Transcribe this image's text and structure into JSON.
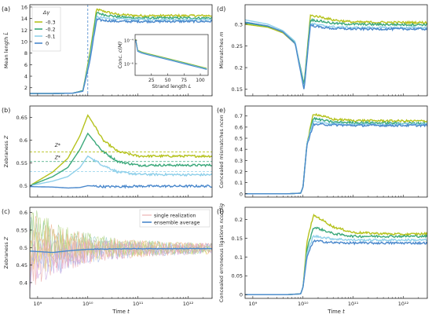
{
  "figure": {
    "time_label": "Time",
    "time_symbol": "t"
  },
  "chart_data": [
    {
      "panel": "(a)",
      "type": "line",
      "xscale": "log",
      "xlim": [
        700000000.0,
        3000000000000.0
      ],
      "ylim": [
        0.6,
        16.4
      ],
      "ylabel": "Mean length",
      "ylabel_symbol": "L̄",
      "yticks": [
        2,
        4,
        6,
        8,
        10,
        12,
        14,
        16
      ],
      "vline": 10000000000.0,
      "legend": {
        "title": "Δγ",
        "placement": "top-left",
        "entries": [
          "-0.3",
          "-0.2",
          "-0.1",
          "0"
        ]
      },
      "series": [
        {
          "name": "-0.3",
          "color": "#b5c21c",
          "x": [
            700000000.0,
            2000000000.0,
            5000000000.0,
            8000000000.0,
            11000000000.0,
            15000000000.0,
            20000000000.0,
            40000000000.0,
            100000000000.0,
            1000000000000.0,
            3000000000000.0
          ],
          "y": [
            1,
            1,
            1.05,
            1.5,
            8,
            15.6,
            15.3,
            14.7,
            14.5,
            14.5,
            14.5
          ]
        },
        {
          "name": "-0.2",
          "color": "#3aa87a",
          "x": [
            700000000.0,
            2000000000.0,
            5000000000.0,
            8000000000.0,
            11000000000.0,
            15000000000.0,
            20000000000.0,
            40000000000.0,
            100000000000.0,
            1000000000000.0,
            3000000000000.0
          ],
          "y": [
            1,
            1,
            1.05,
            1.5,
            7.5,
            15,
            14.7,
            14.3,
            14.1,
            14.1,
            14.1
          ]
        },
        {
          "name": "-0.1",
          "color": "#8fd0ea",
          "x": [
            700000000.0,
            2000000000.0,
            5000000000.0,
            8000000000.0,
            11000000000.0,
            15000000000.0,
            20000000000.0,
            40000000000.0,
            100000000000.0,
            1000000000000.0,
            3000000000000.0
          ],
          "y": [
            1,
            1,
            1.05,
            1.4,
            7,
            14.3,
            14.1,
            13.9,
            13.8,
            13.8,
            13.8
          ]
        },
        {
          "name": "0",
          "color": "#4a88cc",
          "x": [
            700000000.0,
            2000000000.0,
            5000000000.0,
            8000000000.0,
            11000000000.0,
            15000000000.0,
            20000000000.0,
            40000000000.0,
            100000000000.0,
            1000000000000.0,
            3000000000000.0
          ],
          "y": [
            1,
            1,
            1.05,
            1.4,
            6.6,
            13.8,
            13.7,
            13.5,
            13.5,
            13.5,
            13.5
          ]
        }
      ],
      "inset": {
        "type": "line",
        "xlabel": "Strand length",
        "xlabel_symbol": "L",
        "ylabel": "Conc.",
        "ylabel_symbol": "c(M)",
        "xticks": [
          25,
          50,
          75,
          100
        ],
        "ytick_labels": [
          "10⁻⁴",
          "10⁻⁶"
        ],
        "yscale": "log",
        "xlim": [
          0,
          112
        ],
        "ylim": [
          1e-07,
          0.0003
        ],
        "x": [
          1,
          4,
          10,
          20,
          40,
          60,
          80,
          100,
          110
        ],
        "y": [
          0.00012,
          1.4e-05,
          1e-05,
          7e-06,
          3.8e-06,
          2e-06,
          1.05e-06,
          5.5e-07,
          4e-07
        ]
      }
    },
    {
      "panel": "(b)",
      "type": "line",
      "xscale": "log",
      "xlim": [
        700000000.0,
        3000000000000.0
      ],
      "ylim": [
        0.475,
        0.675
      ],
      "ylabel": "Zebraness",
      "ylabel_symbol": "Z",
      "yticks": [
        0.5,
        0.55,
        0.6,
        0.65
      ],
      "ref_labels": [
        "Z*",
        "Z*"
      ],
      "reference_lines": [
        {
          "color": "#b5c21c",
          "y": 0.574
        },
        {
          "color": "#3aa87a",
          "y": 0.553
        },
        {
          "color": "#8fd0ea",
          "y": 0.531
        }
      ],
      "series": [
        {
          "color": "#b5c21c",
          "x": [
            700000000.0,
            2000000000.0,
            4000000000.0,
            7000000000.0,
            10000000000.0,
            14000000000.0,
            20000000000.0,
            40000000000.0,
            100000000000.0,
            1000000000000.0,
            3000000000000.0
          ],
          "y": [
            0.5,
            0.53,
            0.56,
            0.61,
            0.655,
            0.63,
            0.6,
            0.575,
            0.565,
            0.565,
            0.565
          ]
        },
        {
          "color": "#3aa87a",
          "x": [
            700000000.0,
            2000000000.0,
            4000000000.0,
            7000000000.0,
            10000000000.0,
            14000000000.0,
            20000000000.0,
            40000000000.0,
            100000000000.0,
            1000000000000.0,
            3000000000000.0
          ],
          "y": [
            0.5,
            0.52,
            0.54,
            0.58,
            0.615,
            0.595,
            0.575,
            0.553,
            0.545,
            0.545,
            0.545
          ]
        },
        {
          "color": "#8fd0ea",
          "x": [
            700000000.0,
            2000000000.0,
            4000000000.0,
            7000000000.0,
            10000000000.0,
            14000000000.0,
            20000000000.0,
            40000000000.0,
            100000000000.0,
            1000000000000.0,
            3000000000000.0
          ],
          "y": [
            0.5,
            0.51,
            0.52,
            0.54,
            0.565,
            0.555,
            0.545,
            0.53,
            0.525,
            0.524,
            0.524
          ]
        },
        {
          "color": "#4a88cc",
          "x": [
            700000000.0,
            2000000000.0,
            4000000000.0,
            7000000000.0,
            10000000000.0,
            14000000000.0,
            20000000000.0,
            40000000000.0,
            100000000000.0,
            1000000000000.0,
            3000000000000.0
          ],
          "y": [
            0.498,
            0.497,
            0.495,
            0.496,
            0.5,
            0.499,
            0.498,
            0.498,
            0.499,
            0.499,
            0.499
          ]
        }
      ]
    },
    {
      "panel": "(c)",
      "type": "line",
      "xscale": "log",
      "xlim": [
        700000000.0,
        3000000000000.0
      ],
      "ylim": [
        0.355,
        0.615
      ],
      "ylabel": "Zebraness",
      "ylabel_symbol": "Z",
      "yticks": [
        0.4,
        0.45,
        0.5,
        0.55,
        0.6
      ],
      "xtick_labels": [
        "10⁹",
        "10¹⁰",
        "10¹¹",
        "10¹²"
      ],
      "xticks": [
        1000000000.0,
        10000000000.0,
        100000000000.0,
        1000000000000.0
      ],
      "legend": {
        "placement": "top-right",
        "entries": [
          "single realization",
          "ensemble average"
        ]
      },
      "realization_colors": [
        "#e9a3a3",
        "#f2c07a",
        "#e6d96e",
        "#a7d08c",
        "#8cc7c2",
        "#9fb8e6",
        "#c7a3e0",
        "#e8a8cf",
        "#b6d67a",
        "#f0b48e"
      ],
      "series": [
        {
          "name": "ensemble average",
          "color": "#4a88cc",
          "x": [
            700000000.0,
            2000000000.0,
            5000000000.0,
            10000000000.0,
            30000000000.0,
            100000000000.0,
            1000000000000.0,
            3000000000000.0
          ],
          "y": [
            0.49,
            0.486,
            0.492,
            0.495,
            0.496,
            0.497,
            0.497,
            0.497
          ]
        }
      ]
    },
    {
      "panel": "(d)",
      "type": "line",
      "xscale": "log",
      "xlim": [
        700000000.0,
        3000000000000.0
      ],
      "ylim": [
        0.135,
        0.345
      ],
      "ylabel": "Mismatches",
      "ylabel_symbol": "m",
      "yticks": [
        0.15,
        0.2,
        0.25,
        0.3
      ],
      "series": [
        {
          "color": "#b5c21c",
          "x": [
            700000000.0,
            2000000000.0,
            4000000000.0,
            7000000000.0,
            10500000000.0,
            14000000000.0,
            20000000000.0,
            40000000000.0,
            100000000000.0,
            1000000000000.0,
            3000000000000.0
          ],
          "y": [
            0.3,
            0.293,
            0.28,
            0.255,
            0.16,
            0.32,
            0.318,
            0.31,
            0.305,
            0.304,
            0.304
          ]
        },
        {
          "color": "#3aa87a",
          "x": [
            700000000.0,
            2000000000.0,
            4000000000.0,
            7000000000.0,
            10500000000.0,
            14000000000.0,
            20000000000.0,
            40000000000.0,
            100000000000.0,
            1000000000000.0,
            3000000000000.0
          ],
          "y": [
            0.303,
            0.295,
            0.283,
            0.257,
            0.16,
            0.31,
            0.308,
            0.302,
            0.3,
            0.299,
            0.299
          ]
        },
        {
          "color": "#8fd0ea",
          "x": [
            700000000.0,
            2000000000.0,
            4000000000.0,
            7000000000.0,
            10500000000.0,
            14000000000.0,
            20000000000.0,
            40000000000.0,
            100000000000.0,
            1000000000000.0,
            3000000000000.0
          ],
          "y": [
            0.31,
            0.3,
            0.285,
            0.26,
            0.15,
            0.302,
            0.298,
            0.294,
            0.292,
            0.292,
            0.292
          ]
        },
        {
          "color": "#4a88cc",
          "x": [
            700000000.0,
            2000000000.0,
            4000000000.0,
            7000000000.0,
            10500000000.0,
            14000000000.0,
            20000000000.0,
            40000000000.0,
            100000000000.0,
            1000000000000.0,
            3000000000000.0
          ],
          "y": [
            0.305,
            0.296,
            0.282,
            0.255,
            0.148,
            0.298,
            0.294,
            0.29,
            0.289,
            0.289,
            0.289
          ]
        }
      ]
    },
    {
      "panel": "(e)",
      "type": "line",
      "xscale": "log",
      "xlim": [
        700000000.0,
        3000000000000.0
      ],
      "ylim": [
        -0.03,
        0.79
      ],
      "ylabel": "Concealed mismatches",
      "ylabel_symbol": "ncon",
      "yticks": [
        0,
        0.1,
        0.2,
        0.3,
        0.4,
        0.5,
        0.6,
        0.7
      ],
      "series": [
        {
          "color": "#b5c21c",
          "x": [
            700000000.0,
            5000000000.0,
            9000000000.0,
            10000000000.0,
            12000000000.0,
            16000000000.0,
            20000000000.0,
            40000000000.0,
            100000000000.0,
            1000000000000.0,
            3000000000000.0
          ],
          "y": [
            0,
            0,
            0.005,
            0.06,
            0.45,
            0.72,
            0.71,
            0.67,
            0.66,
            0.655,
            0.655
          ]
        },
        {
          "color": "#3aa87a",
          "x": [
            700000000.0,
            5000000000.0,
            9000000000.0,
            10000000000.0,
            12000000000.0,
            16000000000.0,
            20000000000.0,
            40000000000.0,
            100000000000.0,
            1000000000000.0,
            3000000000000.0
          ],
          "y": [
            0,
            0,
            0.005,
            0.06,
            0.45,
            0.68,
            0.67,
            0.645,
            0.64,
            0.635,
            0.635
          ]
        },
        {
          "color": "#8fd0ea",
          "x": [
            700000000.0,
            5000000000.0,
            9000000000.0,
            10000000000.0,
            12000000000.0,
            16000000000.0,
            20000000000.0,
            40000000000.0,
            100000000000.0,
            1000000000000.0,
            3000000000000.0
          ],
          "y": [
            0,
            0,
            0.005,
            0.06,
            0.45,
            0.65,
            0.645,
            0.63,
            0.625,
            0.625,
            0.625
          ]
        },
        {
          "color": "#4a88cc",
          "x": [
            700000000.0,
            5000000000.0,
            9000000000.0,
            10000000000.0,
            12000000000.0,
            16000000000.0,
            20000000000.0,
            40000000000.0,
            100000000000.0,
            1000000000000.0,
            3000000000000.0
          ],
          "y": [
            0,
            0,
            0.005,
            0.06,
            0.44,
            0.62,
            0.625,
            0.62,
            0.615,
            0.615,
            0.615
          ]
        }
      ]
    },
    {
      "panel": "(f)",
      "type": "line",
      "xscale": "log",
      "xlim": [
        700000000.0,
        3000000000000.0
      ],
      "ylim": [
        -0.01,
        0.232
      ],
      "ylabel": "Concealed erroneous ligations",
      "ylabel_symbol": "ncon,lig",
      "yticks": [
        0,
        0.05,
        0.1,
        0.15,
        0.2
      ],
      "xtick_labels": [
        "10⁹",
        "10¹⁰",
        "10¹¹",
        "10¹²"
      ],
      "xticks": [
        1000000000.0,
        10000000000.0,
        100000000000.0,
        1000000000000.0
      ],
      "series": [
        {
          "color": "#b5c21c",
          "x": [
            700000000.0,
            5000000000.0,
            9000000000.0,
            10000000000.0,
            12000000000.0,
            16000000000.0,
            20000000000.0,
            40000000000.0,
            100000000000.0,
            1000000000000.0,
            3000000000000.0
          ],
          "y": [
            0,
            0,
            0.002,
            0.02,
            0.14,
            0.21,
            0.205,
            0.18,
            0.165,
            0.16,
            0.162
          ]
        },
        {
          "color": "#3aa87a",
          "x": [
            700000000.0,
            5000000000.0,
            9000000000.0,
            10000000000.0,
            12000000000.0,
            16000000000.0,
            20000000000.0,
            40000000000.0,
            100000000000.0,
            1000000000000.0,
            3000000000000.0
          ],
          "y": [
            0,
            0,
            0.002,
            0.02,
            0.12,
            0.178,
            0.176,
            0.162,
            0.155,
            0.155,
            0.155
          ]
        },
        {
          "color": "#8fd0ea",
          "x": [
            700000000.0,
            5000000000.0,
            9000000000.0,
            10000000000.0,
            12000000000.0,
            16000000000.0,
            20000000000.0,
            40000000000.0,
            100000000000.0,
            1000000000000.0,
            3000000000000.0
          ],
          "y": [
            0,
            0,
            0.002,
            0.02,
            0.11,
            0.155,
            0.154,
            0.148,
            0.145,
            0.145,
            0.145
          ]
        },
        {
          "color": "#4a88cc",
          "x": [
            700000000.0,
            5000000000.0,
            9000000000.0,
            10000000000.0,
            12000000000.0,
            16000000000.0,
            20000000000.0,
            40000000000.0,
            100000000000.0,
            1000000000000.0,
            3000000000000.0
          ],
          "y": [
            0,
            0,
            0.002,
            0.02,
            0.1,
            0.142,
            0.142,
            0.138,
            0.137,
            0.137,
            0.137
          ]
        }
      ]
    }
  ]
}
